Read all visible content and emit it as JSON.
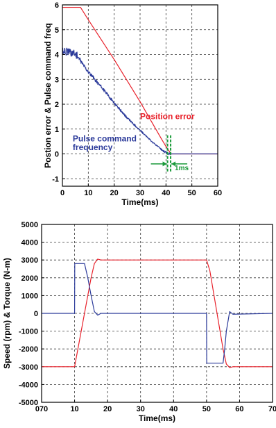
{
  "chart_data": [
    {
      "type": "line",
      "xlabel": "Time(ms)",
      "ylabel": "Postion error & Pulse command freq",
      "xlim": [
        0,
        60
      ],
      "ylim": [
        -1.3,
        6
      ],
      "x_ticks": [
        "0",
        "10",
        "20",
        "30",
        "40",
        "50",
        "60"
      ],
      "y_ticks": [
        "6",
        "5",
        "4",
        "3",
        "2",
        "1",
        "0",
        "-1"
      ],
      "grid": true,
      "grid_style": "dashed",
      "series": [
        {
          "name": "Position error",
          "color": "#e8202a",
          "noisy": false,
          "x": [
            0,
            7,
            10,
            20,
            30,
            38,
            40,
            42,
            60
          ],
          "y": [
            5.9,
            5.9,
            5.4,
            3.8,
            2.1,
            0.65,
            0.3,
            0.0,
            0.0
          ]
        },
        {
          "name": "Pulse command frequency",
          "color": "#2b3a9a",
          "noisy": true,
          "x": [
            0,
            5,
            10,
            15,
            20,
            25,
            30,
            35,
            40,
            41,
            60
          ],
          "y": [
            4.15,
            4.05,
            3.3,
            2.7,
            2.05,
            1.45,
            0.95,
            0.45,
            0.05,
            0.0,
            0.0
          ]
        }
      ],
      "annotations": [
        {
          "text": "Position error",
          "color": "#e8202a",
          "at": [
            30,
            1.4
          ]
        },
        {
          "text": "Pulse command",
          "color": "#2b3a9a",
          "at": [
            4,
            0.5
          ]
        },
        {
          "text": "frequency",
          "color": "#2b3a9a",
          "at": [
            4,
            0.16
          ]
        },
        {
          "text": "1ms",
          "color": "#1a9a3a",
          "at": [
            43.4,
            -0.65
          ]
        }
      ],
      "markers": {
        "color": "#1a9a3a",
        "x": [
          40.6,
          41.8
        ]
      }
    },
    {
      "type": "line",
      "xlabel": "Time(ms)",
      "ylabel": "Speed (rpm) & Torque (N-m)",
      "xlim": [
        0,
        70
      ],
      "ylim": [
        -5000,
        5000
      ],
      "x_ticks": [
        "070",
        "10",
        "20",
        "30",
        "40",
        "50",
        "60",
        "70"
      ],
      "y_ticks": [
        "5000",
        "4000",
        "3000",
        "2000",
        "1000",
        "0",
        "-1000",
        "-2000",
        "-3000",
        "-4000",
        "-5000"
      ],
      "grid": true,
      "grid_style": "dashed",
      "series": [
        {
          "name": "Speed",
          "color": "#e8202a",
          "x": [
            0,
            10,
            15,
            16,
            17,
            18,
            50,
            51,
            55,
            56,
            57,
            58,
            70
          ],
          "y": [
            -3000,
            -3000,
            2000,
            2800,
            3050,
            3000,
            3000,
            2400,
            -2000,
            -2850,
            -3050,
            -3000,
            -3000
          ]
        },
        {
          "name": "Torque",
          "color": "#2b3a9a",
          "x": [
            0,
            10,
            10.05,
            13,
            14,
            15,
            16,
            17,
            18,
            30,
            45,
            50,
            50.05,
            55,
            55.5,
            56,
            57,
            58,
            70
          ],
          "y": [
            0,
            0,
            2800,
            2800,
            2000,
            1000,
            100,
            -100,
            0,
            0,
            0,
            0,
            -2800,
            -2800,
            -2000,
            -1000,
            100,
            -50,
            0
          ]
        }
      ]
    }
  ]
}
